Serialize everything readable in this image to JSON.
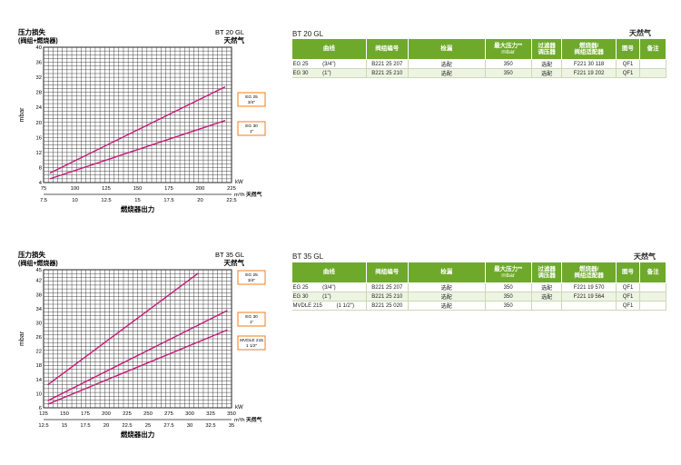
{
  "colors": {
    "curve": "#c8197a",
    "legend_border": "#f07c1a",
    "header_bg": "#6ea92b",
    "grid": "#222222"
  },
  "table_headers": [
    "曲线",
    "阀组编号",
    "检漏",
    "最大压力",
    "过滤器调压器",
    "燃烧器/阀组适配器",
    "图号",
    "备注"
  ],
  "table_header_sup": "**",
  "table_header_unit": "mbar",
  "panels": [
    {
      "chart_title_lines": [
        "压力损失",
        "(阀组+燃烧器)"
      ],
      "model": "BT 20 GL",
      "gas": "天然气",
      "ylabel": "mbar",
      "xlabel": "燃烧器出力",
      "kw_unit": "kW",
      "m3h_unit": "m³/h",
      "m3h_gas": "天然气",
      "legend": [
        {
          "lines": [
            "EG 25",
            "3/4\""
          ]
        },
        {
          "lines": [
            "EG 30",
            "1\""
          ]
        }
      ],
      "rows": [
        {
          "curve": "EG 25",
          "conn": "(3/4\")",
          "valve_code": "B221 25 207",
          "leak_test": "选配",
          "max_pressure": "350",
          "filter": "选配",
          "adapter": "F221 30 118",
          "fig": "QF1",
          "note": ""
        },
        {
          "curve": "EG 30",
          "conn": "(1\")",
          "valve_code": "B221 25 210",
          "leak_test": "选配",
          "max_pressure": "350",
          "filter": "选配",
          "adapter": "F221 19 202",
          "fig": "QF1",
          "note": ""
        }
      ],
      "chart_data": {
        "type": "line",
        "title": "",
        "xlabel": "燃烧器出力",
        "ylabel": "mbar",
        "xlim": [
          75,
          225
        ],
        "ylim": [
          4,
          40
        ],
        "x_ticks": [
          "75",
          "100",
          "125",
          "150",
          "175",
          "200",
          "225"
        ],
        "x2_ticks": [
          "7.5",
          "10",
          "12.5",
          "15",
          "17.5",
          "20",
          "22.5"
        ],
        "y_ticks": [
          "4",
          "8",
          "12",
          "16",
          "20",
          "24",
          "28",
          "32",
          "36",
          "40"
        ],
        "grid": true,
        "legend_position": "right",
        "series": [
          {
            "name": "EG 25 3/4\"",
            "x": [
              80,
              220
            ],
            "y": [
              6.5,
              29.5
            ]
          },
          {
            "name": "EG 30 1\"",
            "x": [
              80,
              220
            ],
            "y": [
              5,
              20.5
            ]
          }
        ]
      }
    },
    {
      "chart_title_lines": [
        "压力损失",
        "(阀组+燃烧器)"
      ],
      "model": "BT 35 GL",
      "gas": "天然气",
      "ylabel": "mbar",
      "xlabel": "燃烧器出力",
      "kw_unit": "kW",
      "m3h_unit": "m³/h",
      "m3h_gas": "天然气",
      "legend": [
        {
          "lines": [
            "EG 25",
            "3/4\""
          ]
        },
        {
          "lines": [
            "EG 30",
            "1\""
          ]
        },
        {
          "lines": [
            "MVDLE 215",
            "1 1/2\""
          ]
        }
      ],
      "rows": [
        {
          "curve": "EG 25",
          "conn": "(3/4\")",
          "valve_code": "B221 25 207",
          "leak_test": "选配",
          "max_pressure": "350",
          "filter": "选配",
          "adapter": "F221 19 570",
          "fig": "QF1",
          "note": ""
        },
        {
          "curve": "EG 30",
          "conn": "(1\")",
          "valve_code": "B221 25 210",
          "leak_test": "选配",
          "max_pressure": "350",
          "filter": "选配",
          "adapter": "F221 19 564",
          "fig": "QF1",
          "note": ""
        },
        {
          "curve": "MVDLE 215",
          "conn": "(1 1/2\")",
          "valve_code": "B221 25 020",
          "leak_test": "选配",
          "max_pressure": "350",
          "filter": "",
          "adapter": "",
          "fig": "QF1",
          "note": ""
        }
      ],
      "chart_data": {
        "type": "line",
        "title": "",
        "xlabel": "燃烧器出力",
        "ylabel": "mbar",
        "xlim": [
          125,
          350
        ],
        "ylim": [
          6,
          45
        ],
        "x_ticks": [
          "125",
          "150",
          "175",
          "200",
          "225",
          "250",
          "275",
          "300",
          "325",
          "350"
        ],
        "x2_ticks": [
          "12.5",
          "15",
          "17.5",
          "20",
          "22.5",
          "25",
          "27.5",
          "30",
          "32.5",
          "35"
        ],
        "y_ticks": [
          "6",
          "10",
          "14",
          "18",
          "22",
          "26",
          "30",
          "34",
          "38",
          "42",
          "45"
        ],
        "grid": true,
        "legend_position": "right",
        "series": [
          {
            "name": "EG 25 3/4\"",
            "x": [
              130,
              310
            ],
            "y": [
              12.5,
              44
            ]
          },
          {
            "name": "EG 30 1\"",
            "x": [
              130,
              345
            ],
            "y": [
              8,
              33.5
            ]
          },
          {
            "name": "MVDLE 215 1 1/2\"",
            "x": [
              130,
              345
            ],
            "y": [
              7,
              28
            ]
          }
        ]
      }
    }
  ]
}
